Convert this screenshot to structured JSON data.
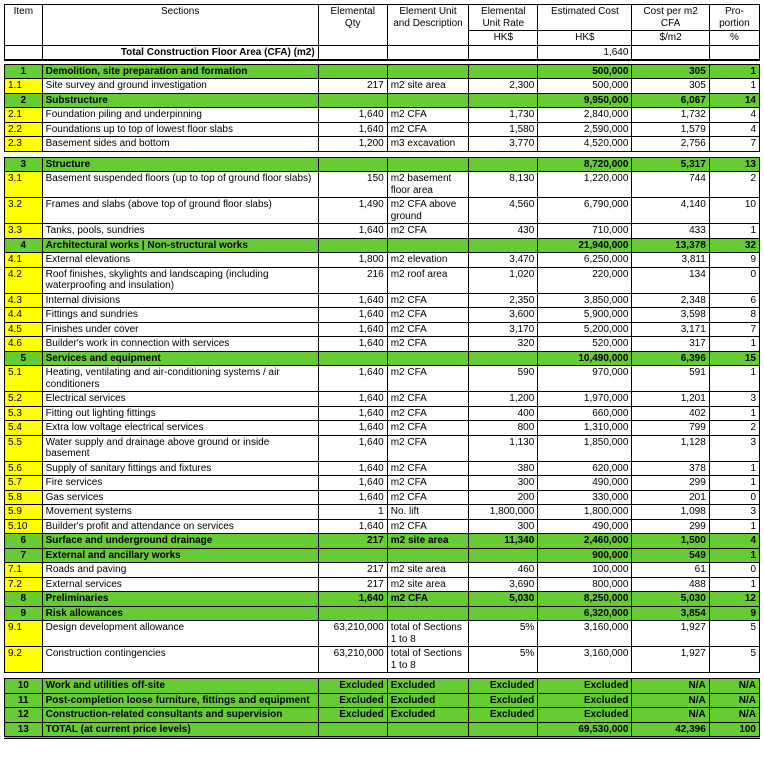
{
  "header": {
    "item": "Item",
    "sections": "Sections",
    "qty": "Elemental Qty",
    "unit": "Element Unit and Description",
    "rate": "Elemental Unit Rate",
    "cost": "Estimated Cost",
    "cfa": "Cost per m2 CFA",
    "prop": "Pro-portion",
    "rate_sub": "HK$",
    "cost_sub": "HK$",
    "cfa_sub": "$/m2",
    "prop_sub": "%"
  },
  "cfa_row": {
    "label": "Total Construction Floor Area (CFA) (m2)",
    "value": "1,640"
  },
  "rows": [
    {
      "type": "head",
      "item": "1",
      "sec": "Demolition, site preparation and formation",
      "cost": "500,000",
      "cfa": "305",
      "prop": "1"
    },
    {
      "type": "sub",
      "item": "1.1",
      "sec": "Site survey and ground investigation",
      "qty": "217",
      "unit": "m2 site area",
      "rate": "2,300",
      "cost": "500,000",
      "cfa": "305",
      "prop": "1"
    },
    {
      "type": "head",
      "item": "2",
      "sec": "Substructure",
      "cost": "9,950,000",
      "cfa": "6,067",
      "prop": "14"
    },
    {
      "type": "sub",
      "item": "2.1",
      "sec": "Foundation piling and underpinning",
      "qty": "1,640",
      "unit": "m2 CFA",
      "rate": "1,730",
      "cost": "2,840,000",
      "cfa": "1,732",
      "prop": "4"
    },
    {
      "type": "sub",
      "item": "2.2",
      "sec": "Foundations up to top of lowest floor slabs",
      "qty": "1,640",
      "unit": "m2 CFA",
      "rate": "1,580",
      "cost": "2,590,000",
      "cfa": "1,579",
      "prop": "4"
    },
    {
      "type": "sub",
      "item": "2.3",
      "sec": "Basement sides and bottom",
      "qty": "1,200",
      "unit": "m3 excavation",
      "rate": "3,770",
      "cost": "4,520,000",
      "cfa": "2,756",
      "prop": "7"
    },
    {
      "type": "spacer"
    },
    {
      "type": "head",
      "item": "3",
      "sec": "Structure",
      "cost": "8,720,000",
      "cfa": "5,317",
      "prop": "13"
    },
    {
      "type": "sub",
      "item": "3.1",
      "sec": "Basement suspended floors (up to top of ground floor slabs)",
      "qty": "150",
      "unit": "m2 basement floor area",
      "rate": "8,130",
      "cost": "1,220,000",
      "cfa": "744",
      "prop": "2"
    },
    {
      "type": "sub",
      "item": "3.2",
      "sec": "Frames and slabs (above top of ground floor slabs)",
      "qty": "1,490",
      "unit": "m2 CFA above ground",
      "rate": "4,560",
      "cost": "6,790,000",
      "cfa": "4,140",
      "prop": "10"
    },
    {
      "type": "sub",
      "item": "3.3",
      "sec": "Tanks, pools, sundries",
      "qty": "1,640",
      "unit": "m2 CFA",
      "rate": "430",
      "cost": "710,000",
      "cfa": "433",
      "prop": "1"
    },
    {
      "type": "head",
      "item": "4",
      "sec": "Architectural works | Non-structural works",
      "cost": "21,940,000",
      "cfa": "13,378",
      "prop": "32"
    },
    {
      "type": "sub",
      "item": "4.1",
      "sec": "External elevations",
      "qty": "1,800",
      "unit": "m2 elevation",
      "rate": "3,470",
      "cost": "6,250,000",
      "cfa": "3,811",
      "prop": "9"
    },
    {
      "type": "sub",
      "item": "4.2",
      "sec": "Roof finishes, skylights and landscaping (including waterproofing and insulation)",
      "qty": "216",
      "unit": "m2 roof area",
      "rate": "1,020",
      "cost": "220,000",
      "cfa": "134",
      "prop": "0"
    },
    {
      "type": "sub",
      "item": "4.3",
      "sec": "Internal divisions",
      "qty": "1,640",
      "unit": "m2 CFA",
      "rate": "2,350",
      "cost": "3,850,000",
      "cfa": "2,348",
      "prop": "6"
    },
    {
      "type": "sub",
      "item": "4.4",
      "sec": "Fittings and sundries",
      "qty": "1,640",
      "unit": "m2 CFA",
      "rate": "3,600",
      "cost": "5,900,000",
      "cfa": "3,598",
      "prop": "8"
    },
    {
      "type": "sub",
      "item": "4.5",
      "sec": "Finishes under cover",
      "qty": "1,640",
      "unit": "m2 CFA",
      "rate": "3,170",
      "cost": "5,200,000",
      "cfa": "3,171",
      "prop": "7"
    },
    {
      "type": "sub",
      "item": "4.6",
      "sec": "Builder's work in connection with services",
      "qty": "1,640",
      "unit": "m2 CFA",
      "rate": "320",
      "cost": "520,000",
      "cfa": "317",
      "prop": "1"
    },
    {
      "type": "head",
      "item": "5",
      "sec": "Services and equipment",
      "cost": "10,490,000",
      "cfa": "6,396",
      "prop": "15"
    },
    {
      "type": "sub",
      "item": "5.1",
      "sec": "Heating, ventilating and air-conditioning systems / air conditioners",
      "qty": "1,640",
      "unit": "m2 CFA",
      "rate": "590",
      "cost": "970,000",
      "cfa": "591",
      "prop": "1"
    },
    {
      "type": "sub",
      "item": "5.2",
      "sec": "Electrical services",
      "qty": "1,640",
      "unit": "m2 CFA",
      "rate": "1,200",
      "cost": "1,970,000",
      "cfa": "1,201",
      "prop": "3"
    },
    {
      "type": "sub",
      "item": "5.3",
      "sec": "Fitting out lighting fittings",
      "qty": "1,640",
      "unit": "m2 CFA",
      "rate": "400",
      "cost": "660,000",
      "cfa": "402",
      "prop": "1"
    },
    {
      "type": "sub",
      "item": "5.4",
      "sec": "Extra low voltage electrical services",
      "qty": "1,640",
      "unit": "m2 CFA",
      "rate": "800",
      "cost": "1,310,000",
      "cfa": "799",
      "prop": "2"
    },
    {
      "type": "sub",
      "item": "5.5",
      "sec": "Water supply and drainage above ground or inside basement",
      "qty": "1,640",
      "unit": "m2 CFA",
      "rate": "1,130",
      "cost": "1,850,000",
      "cfa": "1,128",
      "prop": "3"
    },
    {
      "type": "sub",
      "item": "5.6",
      "sec": "Supply of sanitary fittings and fixtures",
      "qty": "1,640",
      "unit": "m2 CFA",
      "rate": "380",
      "cost": "620,000",
      "cfa": "378",
      "prop": "1"
    },
    {
      "type": "sub",
      "item": "5.7",
      "sec": "Fire services",
      "qty": "1,640",
      "unit": "m2 CFA",
      "rate": "300",
      "cost": "490,000",
      "cfa": "299",
      "prop": "1"
    },
    {
      "type": "sub",
      "item": "5.8",
      "sec": "Gas services",
      "qty": "1,640",
      "unit": "m2 CFA",
      "rate": "200",
      "cost": "330,000",
      "cfa": "201",
      "prop": "0"
    },
    {
      "type": "sub",
      "item": "5.9",
      "sec": "Movement systems",
      "qty": "1",
      "unit": "No. lift",
      "rate": "1,800,000",
      "cost": "1,800,000",
      "cfa": "1,098",
      "prop": "3"
    },
    {
      "type": "sub",
      "item": "5.10",
      "sec": "Builder's profit and attendance on services",
      "qty": "1,640",
      "unit": "m2 CFA",
      "rate": "300",
      "cost": "490,000",
      "cfa": "299",
      "prop": "1"
    },
    {
      "type": "head",
      "item": "6",
      "sec": "Surface and underground drainage",
      "qty": "217",
      "unit": "m2 site area",
      "rate": "11,340",
      "cost": "2,460,000",
      "cfa": "1,500",
      "prop": "4"
    },
    {
      "type": "head",
      "item": "7",
      "sec": "External and ancillary works",
      "cost": "900,000",
      "cfa": "549",
      "prop": "1"
    },
    {
      "type": "sub",
      "item": "7.1",
      "sec": "Roads and paving",
      "qty": "217",
      "unit": "m2 site area",
      "rate": "460",
      "cost": "100,000",
      "cfa": "61",
      "prop": "0"
    },
    {
      "type": "sub",
      "item": "7.2",
      "sec": "External services",
      "qty": "217",
      "unit": "m2 site area",
      "rate": "3,690",
      "cost": "800,000",
      "cfa": "488",
      "prop": "1"
    },
    {
      "type": "head",
      "item": "8",
      "sec": "Preliminaries",
      "qty": "1,640",
      "unit": "m2 CFA",
      "rate": "5,030",
      "cost": "8,250,000",
      "cfa": "5,030",
      "prop": "12"
    },
    {
      "type": "head",
      "item": "9",
      "sec": "Risk allowances",
      "cost": "6,320,000",
      "cfa": "3,854",
      "prop": "9"
    },
    {
      "type": "sub",
      "item": "9.1",
      "sec": "Design development allowance",
      "qty": "63,210,000",
      "unit": "total of Sections 1 to 8",
      "rate": "5%",
      "cost": "3,160,000",
      "cfa": "1,927",
      "prop": "5"
    },
    {
      "type": "sub",
      "item": "9.2",
      "sec": "Construction contingencies",
      "qty": "63,210,000",
      "unit": "total of Sections 1 to 8",
      "rate": "5%",
      "cost": "3,160,000",
      "cfa": "1,927",
      "prop": "5"
    },
    {
      "type": "spacer"
    },
    {
      "type": "head",
      "item": "10",
      "sec": "Work and utilities off-site",
      "qty": "Excluded",
      "unit": "Excluded",
      "rate": "Excluded",
      "cost": "Excluded",
      "cfa": "N/A",
      "prop": "N/A"
    },
    {
      "type": "head",
      "item": "11",
      "sec": "Post-completion loose furniture, fittings and equipment",
      "qty": "Excluded",
      "unit": "Excluded",
      "rate": "Excluded",
      "cost": "Excluded",
      "cfa": "N/A",
      "prop": "N/A"
    },
    {
      "type": "head",
      "item": "12",
      "sec": "Construction-related consultants and supervision",
      "qty": "Excluded",
      "unit": "Excluded",
      "rate": "Excluded",
      "cost": "Excluded",
      "cfa": "N/A",
      "prop": "N/A"
    },
    {
      "type": "head",
      "item": "13",
      "sec": "TOTAL (at current price levels)",
      "cost": "69,530,000",
      "cfa": "42,396",
      "prop": "100",
      "final": true
    }
  ]
}
